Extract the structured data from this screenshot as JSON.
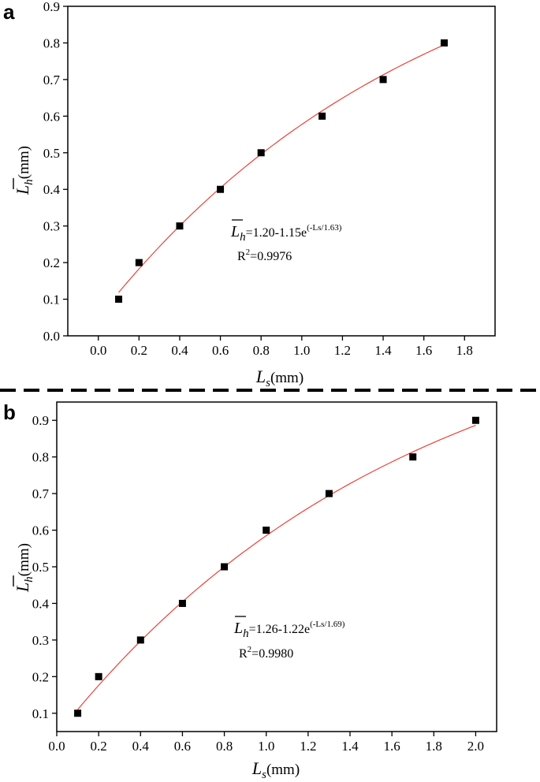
{
  "divider": {
    "style": "dashed",
    "color": "#000000"
  },
  "colors": {
    "fit_line": "#e8433a",
    "marker": "#000000",
    "axis": "#000000"
  },
  "chart_data": [
    {
      "panel_label": "a",
      "type": "scatter",
      "xlabel": {
        "symbol": "L",
        "subscript": "s",
        "unit": "(mm)"
      },
      "ylabel": {
        "symbol": "L",
        "overline": true,
        "subscript": "h",
        "unit": "(mm)"
      },
      "xlim": [
        -0.15,
        1.95
      ],
      "ylim": [
        0,
        0.9
      ],
      "xticks": [
        "0.0",
        "0.2",
        "0.4",
        "0.6",
        "0.8",
        "1.0",
        "1.2",
        "1.4",
        "1.6",
        "1.8"
      ],
      "yticks": [
        "0.0",
        "0.1",
        "0.2",
        "0.3",
        "0.4",
        "0.5",
        "0.6",
        "0.7",
        "0.8",
        "0.9"
      ],
      "x": [
        0.1,
        0.2,
        0.4,
        0.6,
        0.8,
        1.1,
        1.4,
        1.7
      ],
      "y": [
        0.1,
        0.2,
        0.3,
        0.4,
        0.5,
        0.6,
        0.7,
        0.8
      ],
      "marker": "square",
      "fit": {
        "a": 1.2,
        "b": 1.15,
        "c": 1.63,
        "x_range": [
          0.1,
          1.7
        ]
      },
      "equation": {
        "lhs_symbol": "L",
        "lhs_sub": "h",
        "text": "=1.20-1.15e",
        "exp": "(-Ls/1.63)"
      },
      "r2": {
        "label": "R",
        "sup": "2",
        "value": "=0.9976"
      }
    },
    {
      "panel_label": "b",
      "type": "scatter",
      "xlabel": {
        "symbol": "L",
        "subscript": "s",
        "unit": "(mm)"
      },
      "ylabel": {
        "symbol": "L",
        "overline": true,
        "subscript": "h",
        "unit": "(mm)"
      },
      "xlim": [
        0.0,
        2.1
      ],
      "ylim": [
        0.05,
        0.95
      ],
      "xticks": [
        "0.0",
        "0.2",
        "0.4",
        "0.6",
        "0.8",
        "1.0",
        "1.2",
        "1.4",
        "1.6",
        "1.8",
        "2.0"
      ],
      "yticks": [
        "0.1",
        "0.2",
        "0.3",
        "0.4",
        "0.5",
        "0.6",
        "0.7",
        "0.8",
        "0.9"
      ],
      "x": [
        0.1,
        0.2,
        0.4,
        0.6,
        0.8,
        1.0,
        1.3,
        1.7,
        2.0
      ],
      "y": [
        0.1,
        0.2,
        0.3,
        0.4,
        0.5,
        0.6,
        0.7,
        0.8,
        0.9
      ],
      "marker": "square",
      "fit": {
        "a": 1.26,
        "b": 1.22,
        "c": 1.69,
        "x_range": [
          0.1,
          2.0
        ]
      },
      "equation": {
        "lhs_symbol": "L",
        "lhs_sub": "h",
        "text": "=1.26-1.22e",
        "exp": "(-Ls/1.69)"
      },
      "r2": {
        "label": "R",
        "sup": "2",
        "value": "=0.9980"
      }
    }
  ]
}
